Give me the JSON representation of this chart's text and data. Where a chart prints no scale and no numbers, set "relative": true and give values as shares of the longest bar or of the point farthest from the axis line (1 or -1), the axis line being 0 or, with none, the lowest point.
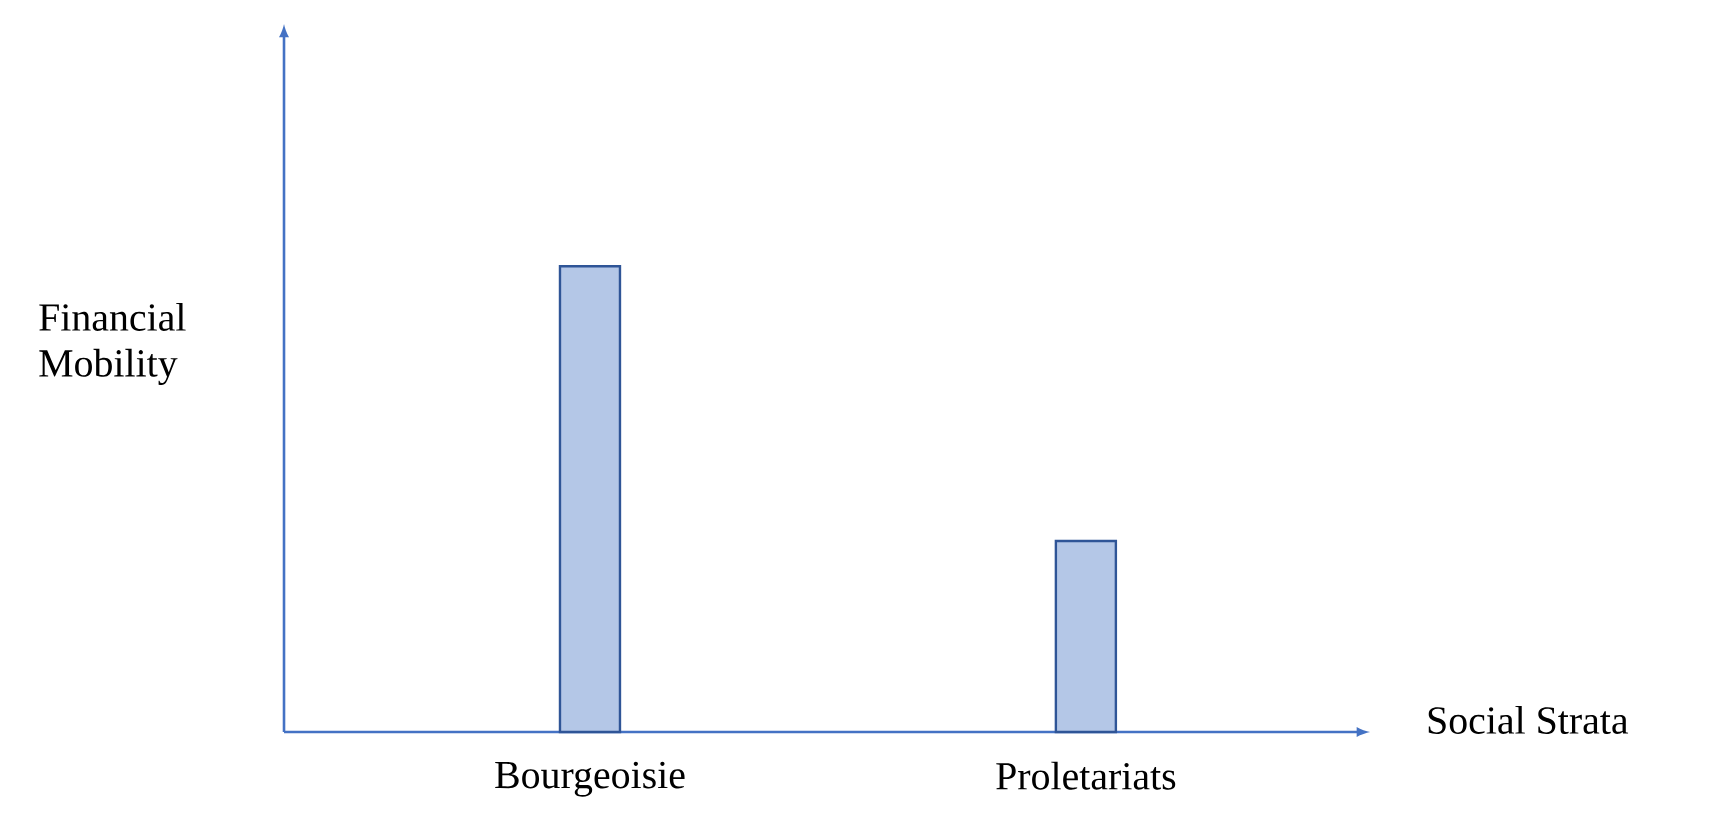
{
  "chart_data": {
    "type": "bar",
    "xlabel": "Social Strata",
    "ylabel": "Financial Mobility",
    "categories": [
      "Bourgeoisie",
      "Proletariats"
    ],
    "values": [
      1,
      0.41
    ],
    "color": "#b4c7e7",
    "relative": true
  }
}
